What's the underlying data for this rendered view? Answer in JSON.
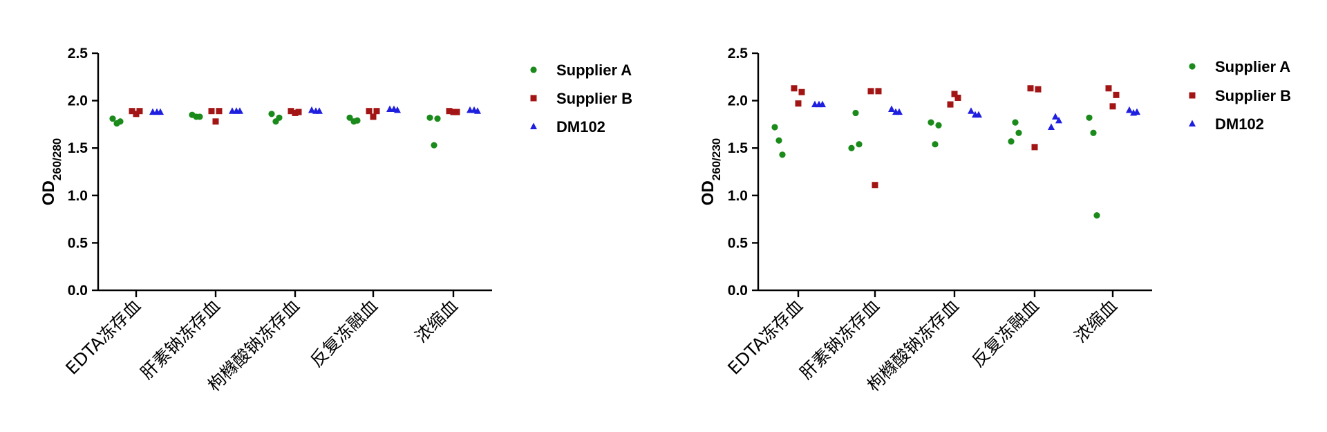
{
  "colors": {
    "Supplier A": "#1a8a1a",
    "Supplier B": "#a31515",
    "DM102": "#1f1fe0"
  },
  "markers": {
    "Supplier A": "circle",
    "Supplier B": "square",
    "DM102": "triangle"
  },
  "chart_data": [
    {
      "type": "scatter",
      "ylabel": "OD",
      "ylabel_subscript": "260/280",
      "ylim": [
        0,
        2.5
      ],
      "yticks": [
        "0.0",
        "0.5",
        "1.0",
        "1.5",
        "2.0",
        "2.5"
      ],
      "categories": [
        "EDTA冻存血",
        "肝素钠冻存血",
        "枸橼酸钠冻存血",
        "反复冻融血",
        "浓缩血"
      ],
      "legend_position": "right",
      "series": [
        {
          "name": "Supplier A",
          "values": [
            [
              1.81,
              1.76,
              1.78
            ],
            [
              1.85,
              1.83,
              1.83
            ],
            [
              1.86,
              1.78,
              1.82
            ],
            [
              1.82,
              1.78,
              1.79
            ],
            [
              1.82,
              1.53,
              1.81
            ]
          ]
        },
        {
          "name": "Supplier B",
          "values": [
            [
              1.89,
              1.86,
              1.89
            ],
            [
              1.89,
              1.78,
              1.89
            ],
            [
              1.89,
              1.87,
              1.88
            ],
            [
              1.89,
              1.83,
              1.89
            ],
            [
              1.89,
              1.88,
              1.88
            ]
          ]
        },
        {
          "name": "DM102",
          "values": [
            [
              1.88,
              1.88,
              1.88
            ],
            [
              1.89,
              1.89,
              1.89
            ],
            [
              1.9,
              1.89,
              1.89
            ],
            [
              1.91,
              1.91,
              1.9
            ],
            [
              1.9,
              1.9,
              1.89
            ]
          ]
        }
      ]
    },
    {
      "type": "scatter",
      "ylabel": "OD",
      "ylabel_subscript": "260/230",
      "ylim": [
        0,
        2.5
      ],
      "yticks": [
        "0.0",
        "0.5",
        "1.0",
        "1.5",
        "2.0",
        "2.5"
      ],
      "categories": [
        "EDTA冻存血",
        "肝素钠冻存血",
        "枸橼酸钠冻存血",
        "反复冻融血",
        "浓缩血"
      ],
      "legend_position": "right",
      "series": [
        {
          "name": "Supplier A",
          "values": [
            [
              1.72,
              1.58,
              1.43
            ],
            [
              1.5,
              1.87,
              1.54
            ],
            [
              1.77,
              1.54,
              1.74
            ],
            [
              1.57,
              1.77,
              1.66
            ],
            [
              1.82,
              1.66,
              0.79
            ]
          ]
        },
        {
          "name": "Supplier B",
          "values": [
            [
              2.13,
              1.97,
              2.09
            ],
            [
              2.1,
              1.11,
              2.1
            ],
            [
              1.96,
              2.07,
              2.03
            ],
            [
              2.13,
              1.51,
              2.12
            ],
            [
              2.13,
              1.94,
              2.06
            ]
          ]
        },
        {
          "name": "DM102",
          "values": [
            [
              1.96,
              1.96,
              1.96
            ],
            [
              1.91,
              1.88,
              1.88
            ],
            [
              1.89,
              1.85,
              1.85
            ],
            [
              1.72,
              1.83,
              1.79
            ],
            [
              1.9,
              1.87,
              1.88
            ]
          ]
        }
      ]
    }
  ]
}
